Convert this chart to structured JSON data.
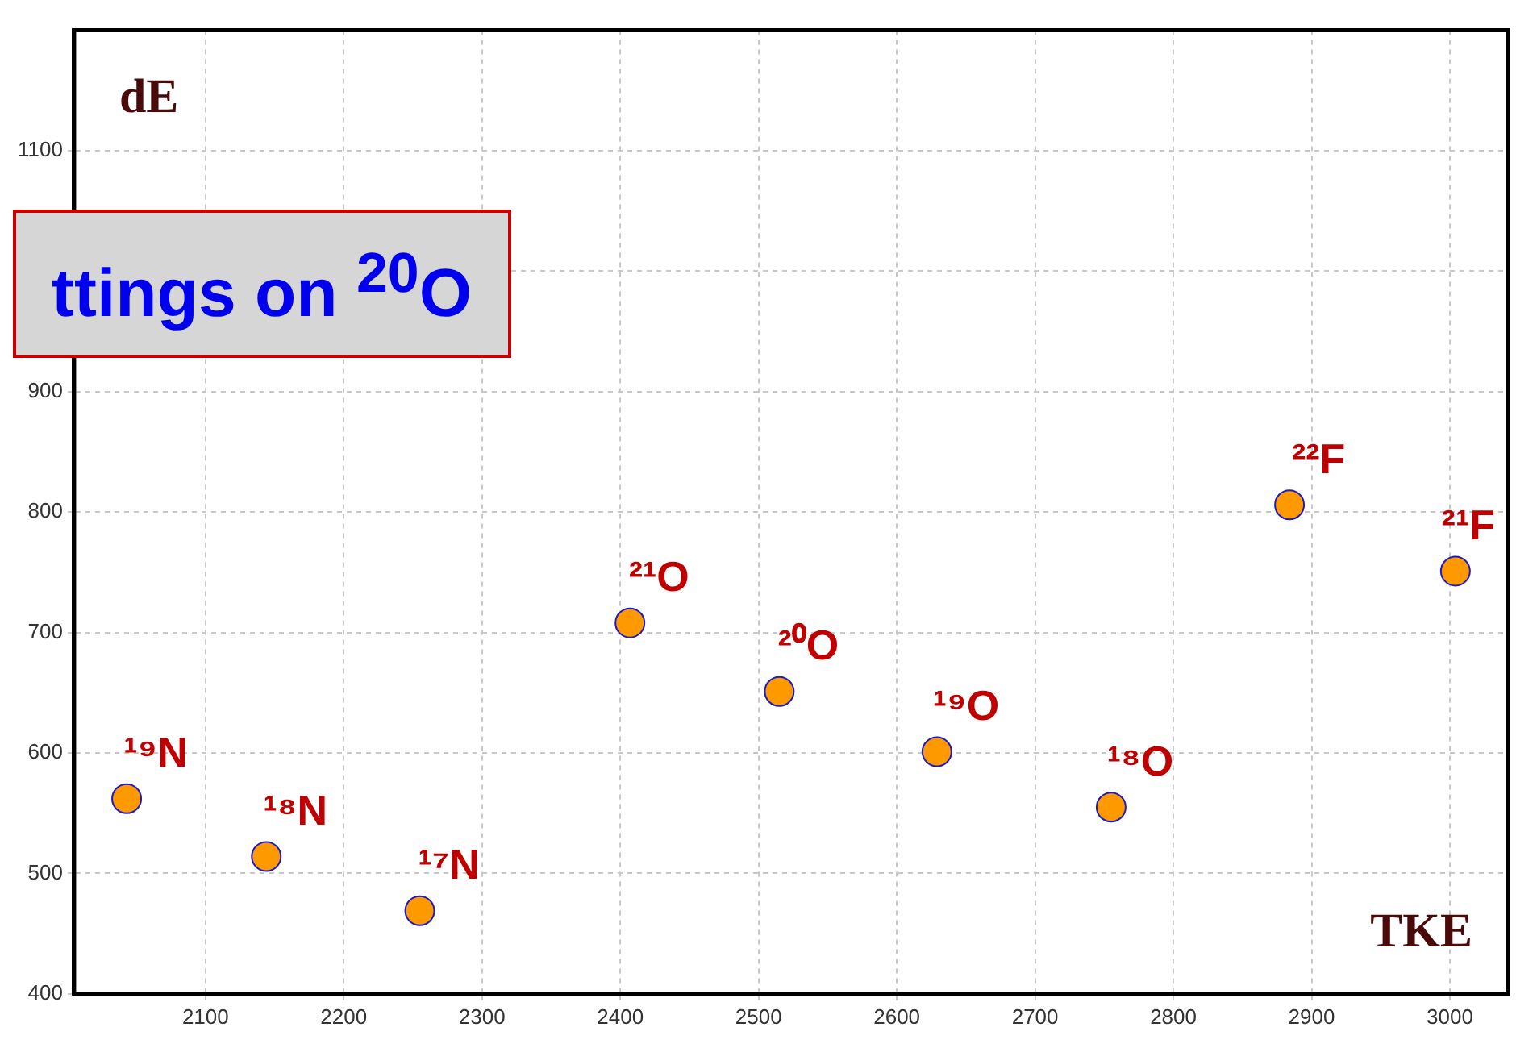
{
  "chart_data": {
    "type": "scatter",
    "title": "ttings on $^{20}$O",
    "xlabel": "TKE",
    "ylabel": "dE",
    "x": [
      2043,
      2144,
      2255,
      2407,
      2515,
      2629,
      2755,
      2884,
      3004
    ],
    "series": [
      {
        "color": "#ff9900",
        "values": [
          562,
          514,
          469,
          708,
          651,
          601,
          555,
          806,
          751
        ]
      }
    ],
    "xlim": [
      2005,
      3042
    ],
    "ylim": [
      400,
      1200
    ],
    "xticks": [
      2100,
      2200,
      2300,
      2400,
      2500,
      2600,
      2700,
      2800,
      2900,
      3000
    ],
    "yticks": [
      400,
      500,
      600,
      700,
      800,
      900,
      {
        "value": 1000,
        "label": null
      },
      1100
    ],
    "grid": true,
    "legend": false,
    "marker": "circle",
    "annotations": [
      {
        "text": "¹⁹N",
        "x": 2043,
        "y": 562
      },
      {
        "text": "¹⁸N",
        "x": 2144,
        "y": 514
      },
      {
        "text": "¹⁷N",
        "x": 2255,
        "y": 469
      },
      {
        "text": "²¹O",
        "x": 2407,
        "y": 708
      },
      {
        "text": "²⁰O",
        "x": 2515,
        "y": 651
      },
      {
        "text": "¹⁹O",
        "x": 2629,
        "y": 601
      },
      {
        "text": "¹⁸O",
        "x": 2755,
        "y": 555
      },
      {
        "text": "²²F",
        "x": 2884,
        "y": 806
      },
      {
        "text": "²¹F",
        "x": 3004,
        "y": 751
      }
    ]
  }
}
